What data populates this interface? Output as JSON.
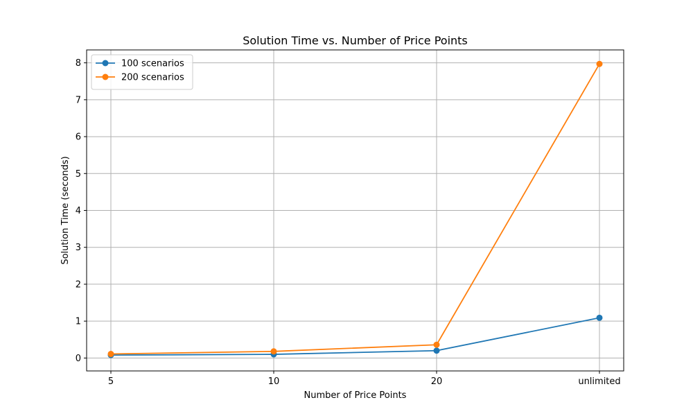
{
  "chart_data": {
    "type": "line",
    "title": "Solution Time vs. Number of Price Points",
    "xlabel": "Number of Price Points",
    "ylabel": "Solution Time (seconds)",
    "categories": [
      "5",
      "10",
      "20",
      "unlimited"
    ],
    "yticks": [
      "0",
      "1",
      "2",
      "3",
      "4",
      "5",
      "6",
      "7",
      "8"
    ],
    "ylim": [
      -0.35,
      8.35
    ],
    "grid": true,
    "legend_position": "top-left",
    "series": [
      {
        "name": "100 scenarios",
        "color": "#1f77b4",
        "values": [
          0.08,
          0.1,
          0.2,
          1.09
        ]
      },
      {
        "name": "200 scenarios",
        "color": "#ff7f0e",
        "values": [
          0.11,
          0.18,
          0.36,
          7.97
        ]
      }
    ]
  }
}
